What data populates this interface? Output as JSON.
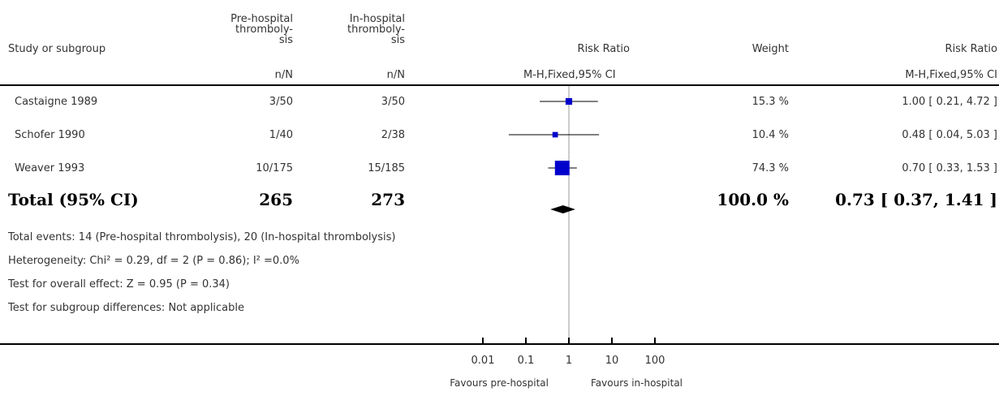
{
  "columns": {
    "study": "Study or subgroup",
    "pre": [
      "Pre-hospital",
      "thromboly-",
      "sis"
    ],
    "in": [
      "In-hospital",
      "thromboly-",
      "sis"
    ],
    "plot": "Risk Ratio",
    "weight": "Weight",
    "ci": "Risk Ratio"
  },
  "subheaders": {
    "pre": "n/N",
    "in": "n/N",
    "plot": "M-H,Fixed,95% CI",
    "ci": "M-H,Fixed,95% CI"
  },
  "studies": [
    {
      "name": "Castaigne 1989",
      "pre": "3/50",
      "in": "3/50",
      "weight": "15.3 %",
      "ci": "1.00 [ 0.21, 4.72 ]"
    },
    {
      "name": "Schofer 1990",
      "pre": "1/40",
      "in": "2/38",
      "weight": "10.4 %",
      "ci": "0.48 [ 0.04, 5.03 ]"
    },
    {
      "name": "Weaver 1993",
      "pre": "10/175",
      "in": "15/185",
      "weight": "74.3 %",
      "ci": "0.70 [ 0.33, 1.53 ]"
    }
  ],
  "total": {
    "label": "Total (95% CI)",
    "pre": "265",
    "in": "273",
    "weight": "100.0 %",
    "ci": "0.73 [ 0.37, 1.41 ]"
  },
  "notes": [
    "Total events: 14 (Pre-hospital thrombolysis), 20 (In-hospital thrombolysis)",
    "Heterogeneity: Chi² = 0.29, df = 2 (P = 0.86); I² =0.0%",
    "Test for overall effect: Z = 0.95 (P = 0.34)",
    "Test for subgroup differences: Not applicable"
  ],
  "axis": {
    "ticks": [
      "0.01",
      "0.1",
      "1",
      "10",
      "100"
    ],
    "left_label": "Favours pre-hospital",
    "right_label": "Favours in-hospital"
  },
  "colors": {
    "marker": "#0000cc",
    "diamond": "#000000",
    "line": "#000000",
    "null_line": "#999999"
  },
  "chart_data": {
    "type": "forest",
    "measure": "Risk Ratio",
    "method": "M-H,Fixed,95% CI",
    "x_scale": "log",
    "xlim": [
      0.01,
      100
    ],
    "null_value": 1,
    "studies": [
      {
        "name": "Castaigne 1989",
        "rr": 1.0,
        "lo": 0.21,
        "hi": 4.72,
        "weight": 15.3
      },
      {
        "name": "Schofer 1990",
        "rr": 0.48,
        "lo": 0.04,
        "hi": 5.03,
        "weight": 10.4
      },
      {
        "name": "Weaver 1993",
        "rr": 0.7,
        "lo": 0.33,
        "hi": 1.53,
        "weight": 74.3
      }
    ],
    "total": {
      "rr": 0.73,
      "lo": 0.37,
      "hi": 1.41,
      "weight": 100.0
    }
  }
}
